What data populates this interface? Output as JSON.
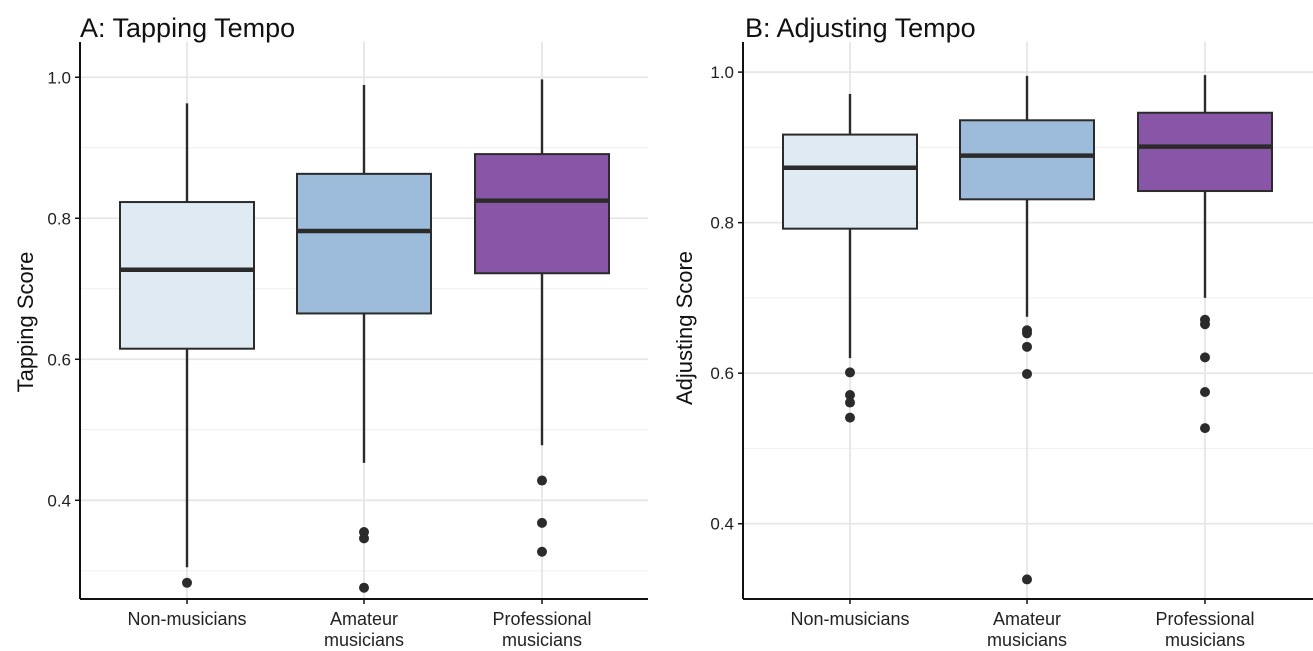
{
  "chart_data": [
    {
      "type": "box",
      "title": "A: Tapping Tempo",
      "xlabel": "",
      "ylabel": "Tapping Score",
      "ylim": [
        0.26,
        1.05
      ],
      "yticks": [
        0.4,
        0.6,
        0.8,
        1.0
      ],
      "ytick_labels": [
        "0.4",
        "0.6",
        "0.8",
        "1.0"
      ],
      "categories": [
        {
          "line1": "Non-musicians",
          "line2": ""
        },
        {
          "line1": "Amateur",
          "line2": "musicians"
        },
        {
          "line1": "Professional",
          "line2": "musicians"
        }
      ],
      "boxes": [
        {
          "whisker_low": 0.305,
          "q1": 0.615,
          "median": 0.727,
          "q3": 0.823,
          "whisker_high": 0.963,
          "outliers": [
            0.283
          ],
          "color": "#dfeaf3"
        },
        {
          "whisker_low": 0.453,
          "q1": 0.665,
          "median": 0.782,
          "q3": 0.863,
          "whisker_high": 0.989,
          "outliers": [
            0.355,
            0.346,
            0.276
          ],
          "color": "#9dbbda"
        },
        {
          "whisker_low": 0.478,
          "q1": 0.722,
          "median": 0.825,
          "q3": 0.891,
          "whisker_high": 0.997,
          "outliers": [
            0.428,
            0.368,
            0.327
          ],
          "color": "#8855a7"
        }
      ],
      "grid": true
    },
    {
      "type": "box",
      "title": "B: Adjusting Tempo",
      "xlabel": "",
      "ylabel": "Adjusting Score",
      "ylim": [
        0.3,
        1.04
      ],
      "yticks": [
        0.4,
        0.6,
        0.8,
        1.0
      ],
      "ytick_labels": [
        "0.4",
        "0.6",
        "0.8",
        "1.0"
      ],
      "categories": [
        {
          "line1": "Non-musicians",
          "line2": ""
        },
        {
          "line1": "Amateur",
          "line2": "musicians"
        },
        {
          "line1": "Professional",
          "line2": "musicians"
        }
      ],
      "boxes": [
        {
          "whisker_low": 0.62,
          "q1": 0.792,
          "median": 0.873,
          "q3": 0.917,
          "whisker_high": 0.971,
          "outliers": [
            0.601,
            0.571,
            0.561,
            0.541
          ],
          "color": "#dfeaf3"
        },
        {
          "whisker_low": 0.675,
          "q1": 0.831,
          "median": 0.889,
          "q3": 0.936,
          "whisker_high": 0.995,
          "outliers": [
            0.657,
            0.653,
            0.635,
            0.599,
            0.326
          ],
          "color": "#9dbbda"
        },
        {
          "whisker_low": 0.7,
          "q1": 0.842,
          "median": 0.901,
          "q3": 0.946,
          "whisker_high": 0.996,
          "outliers": [
            0.671,
            0.665,
            0.621,
            0.575,
            0.527
          ],
          "color": "#8855a7"
        }
      ],
      "grid": true
    }
  ]
}
